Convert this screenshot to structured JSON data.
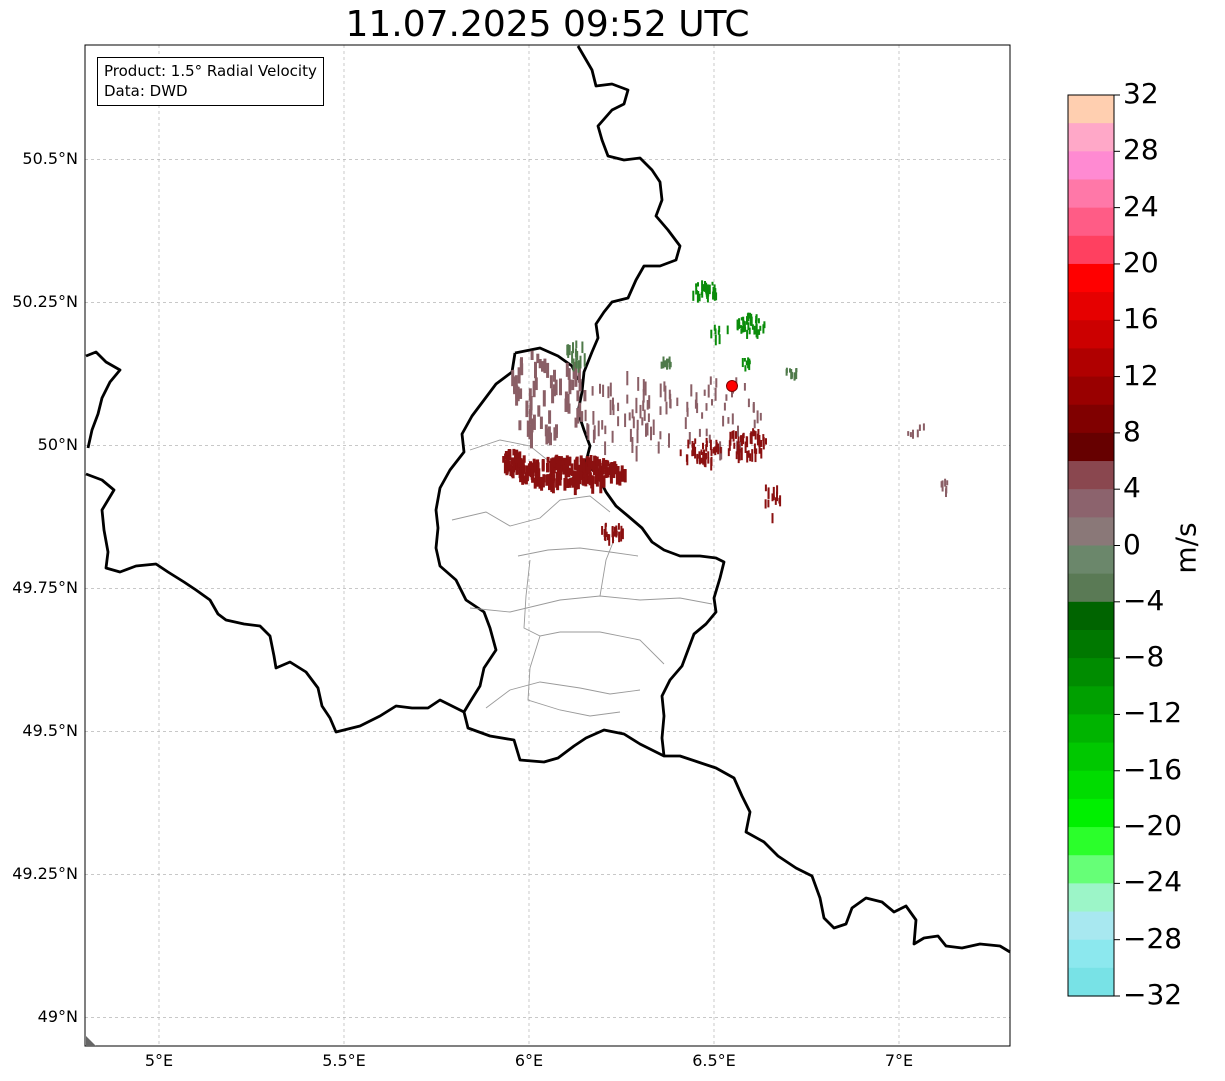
{
  "title": "11.07.2025 09:52 UTC",
  "info": {
    "product": "Product: 1.5° Radial Velocity",
    "data": "Data: DWD"
  },
  "axes": {
    "lat_labels": [
      "50.5°N",
      "50.25°N",
      "50°N",
      "49.75°N",
      "49.5°N",
      "49.25°N",
      "49°N"
    ],
    "lat_values": [
      50.5,
      50.25,
      50.0,
      49.75,
      49.5,
      49.25,
      49.0
    ],
    "lon_labels": [
      "5°E",
      "5.5°E",
      "6°E",
      "6.5°E",
      "7°E"
    ],
    "lon_values": [
      5.0,
      5.5,
      6.0,
      6.5,
      7.0
    ],
    "lat_range": [
      48.95,
      50.7
    ],
    "lon_range": [
      4.8,
      7.3
    ],
    "grid": true
  },
  "colorbar": {
    "unit": "m/s",
    "range": [
      -32,
      32
    ],
    "tick_labels": [
      "32",
      "28",
      "24",
      "20",
      "16",
      "12",
      "8",
      "4",
      "0",
      "−4",
      "−8",
      "−12",
      "−16",
      "−20",
      "−24",
      "−28",
      "−32"
    ],
    "tick_values": [
      32,
      28,
      24,
      20,
      16,
      12,
      8,
      4,
      0,
      -4,
      -8,
      -12,
      -16,
      -20,
      -24,
      -28,
      -32
    ],
    "colors_top_to_bottom": [
      "#ffcfb0",
      "#ffa8c8",
      "#ff8ad2",
      "#ff78a8",
      "#ff5c86",
      "#ff4060",
      "#ff0000",
      "#e60000",
      "#cc0000",
      "#b00000",
      "#990000",
      "#800000",
      "#660000",
      "#8a474f",
      "#8c636d",
      "#8a7878",
      "#6b876b",
      "#5a7a55",
      "#006400",
      "#007800",
      "#008c00",
      "#00a000",
      "#00b400",
      "#00c800",
      "#00dc00",
      "#00f000",
      "#2bff2b",
      "#66ff77",
      "#9cf5c8",
      "#a8e8f0",
      "#8ce8ee",
      "#78e2e6"
    ]
  },
  "radar_site": {
    "lat": 50.11,
    "lon": 6.55,
    "color": "#ff0000"
  },
  "echo_colors": {
    "receding": "#8b1010",
    "weak_receding": "#8a5f66",
    "approaching": "#0a8c0a",
    "weak_approaching": "#4f7a4a"
  }
}
